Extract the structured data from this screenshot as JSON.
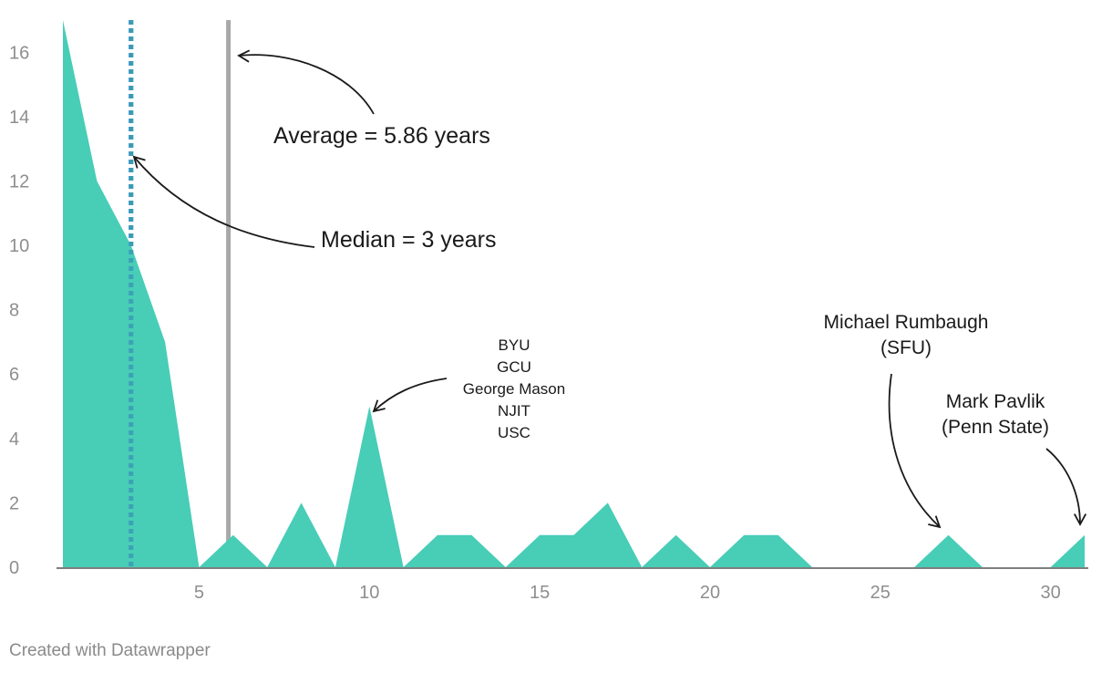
{
  "chart_data": {
    "type": "area",
    "x": [
      1,
      2,
      3,
      4,
      5,
      6,
      7,
      8,
      9,
      10,
      11,
      12,
      13,
      14,
      15,
      16,
      17,
      18,
      19,
      20,
      21,
      22,
      23,
      24,
      25,
      26,
      27,
      28,
      29,
      30,
      31
    ],
    "series": [
      {
        "values": [
          17,
          12,
          10,
          7,
          0,
          1,
          0,
          2,
          0,
          5,
          0,
          1,
          1,
          0,
          1,
          1,
          2,
          0,
          1,
          0,
          1,
          1,
          0,
          0,
          0,
          0,
          1,
          0,
          0,
          0,
          1
        ]
      }
    ],
    "xlim": [
      0.85,
      31
    ],
    "ylim": [
      0,
      17
    ],
    "x_ticks": [
      5,
      10,
      15,
      20,
      25,
      30
    ],
    "y_ticks": [
      0,
      2,
      4,
      6,
      8,
      10,
      12,
      14,
      16
    ],
    "grid": false,
    "colors": {
      "area": "#48cdb7",
      "median": "#3a9ab8",
      "average": "#a8a8a8",
      "axis": "#333333"
    },
    "reference_lines": [
      {
        "name": "median",
        "x": 3,
        "style": "dotted"
      },
      {
        "name": "average",
        "x": 5.86,
        "style": "solid"
      }
    ],
    "annotations": {
      "average": "Average = 5.86 years",
      "median": "Median = 3 years",
      "ten_years": [
        "BYU",
        "GCU",
        "George Mason",
        "NJIT",
        "USC"
      ],
      "rumbaugh": [
        "Michael Rumbaugh",
        "(SFU)"
      ],
      "pavlik": [
        "Mark Pavlik",
        "(Penn State)"
      ]
    }
  },
  "footer": {
    "credit": "Created with Datawrapper"
  }
}
